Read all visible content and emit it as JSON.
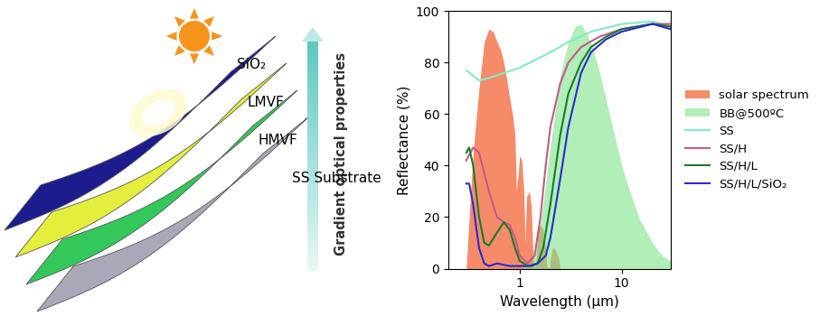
{
  "chart_data": {
    "type": "line",
    "x_label": "Wavelength (μm)",
    "y_label": "Reflectance (%)",
    "log": "x",
    "xlim": [
      0.2,
      30
    ],
    "xticks": [
      1,
      10
    ],
    "ylim": [
      0,
      100
    ],
    "yticks": [
      0,
      20,
      40,
      60,
      80,
      100
    ],
    "legend": "right",
    "series": [
      {
        "name": "solar spectrum",
        "type": "area",
        "color": "#f4774f",
        "x": [
          0.3,
          0.32,
          0.35,
          0.4,
          0.45,
          0.5,
          0.55,
          0.6,
          0.65,
          0.7,
          0.75,
          0.8,
          0.85,
          0.9,
          0.93,
          0.96,
          1.0,
          1.05,
          1.1,
          1.13,
          1.17,
          1.25,
          1.3,
          1.35,
          1.4,
          1.45,
          1.5,
          1.6,
          1.7,
          1.8,
          1.85,
          1.95,
          2.0,
          2.1,
          2.2,
          2.3,
          2.4,
          2.5
        ],
        "values": [
          0,
          20,
          45,
          70,
          88,
          93,
          92,
          88,
          85,
          80,
          73,
          66,
          60,
          52,
          30,
          35,
          44,
          42,
          30,
          10,
          28,
          30,
          24,
          6,
          0,
          3,
          15,
          17,
          15,
          8,
          1,
          0,
          4,
          8,
          8,
          6,
          4,
          0
        ]
      },
      {
        "name": "BB@500ºC",
        "type": "area",
        "color": "#7de38a",
        "x": [
          1.0,
          1.3,
          1.5,
          1.7,
          2.0,
          2.5,
          3.0,
          3.5,
          4.0,
          5.0,
          6.0,
          7.0,
          8.0,
          10.0,
          12.0,
          15.0,
          20.0,
          25.0,
          30.0
        ],
        "values": [
          0,
          2,
          10,
          25,
          48,
          75,
          88,
          94,
          95,
          88,
          77,
          66,
          56,
          40,
          30,
          19,
          10,
          5,
          3
        ]
      },
      {
        "name": "SS",
        "type": "line",
        "color": "#80ecc4",
        "x": [
          0.3,
          0.4,
          0.5,
          1.0,
          2.0,
          3.0,
          5.0,
          10.0,
          20.0,
          30.0
        ],
        "values": [
          77,
          73,
          74,
          78,
          84,
          88,
          92,
          95,
          96,
          94
        ]
      },
      {
        "name": "SS/H",
        "type": "line",
        "color": "#c45a8a",
        "x": [
          0.3,
          0.35,
          0.4,
          0.5,
          0.6,
          0.7,
          0.8,
          0.9,
          1.0,
          1.2,
          1.4,
          1.6,
          1.8,
          2.0,
          2.5,
          3.0,
          4.0,
          6.0,
          10.0,
          20.0,
          30.0
        ],
        "values": [
          42,
          47,
          45,
          30,
          20,
          18,
          17,
          12,
          5,
          2,
          5,
          20,
          40,
          55,
          72,
          80,
          86,
          90,
          93,
          95,
          95
        ]
      },
      {
        "name": "SS/H/L",
        "type": "line",
        "color": "#1a7a2a",
        "x": [
          0.3,
          0.32,
          0.35,
          0.4,
          0.45,
          0.5,
          0.6,
          0.7,
          0.8,
          0.9,
          1.0,
          1.2,
          1.5,
          1.7,
          2.0,
          2.5,
          3.0,
          4.0,
          5.0,
          7.0,
          10.0,
          20.0,
          30.0
        ],
        "values": [
          45,
          47,
          40,
          20,
          10,
          9,
          14,
          18,
          15,
          8,
          3,
          1,
          2,
          8,
          25,
          52,
          68,
          80,
          86,
          90,
          93,
          95,
          94
        ]
      },
      {
        "name": "SS/H/L/SiO₂",
        "type": "line",
        "color": "#2a2acf",
        "x": [
          0.3,
          0.32,
          0.35,
          0.4,
          0.45,
          0.5,
          0.6,
          0.8,
          1.0,
          1.3,
          1.5,
          1.8,
          2.0,
          2.5,
          3.0,
          4.0,
          5.0,
          7.0,
          10.0,
          20.0,
          30.0
        ],
        "values": [
          33,
          33,
          25,
          8,
          2,
          1,
          2,
          1,
          1,
          1,
          2,
          5,
          12,
          35,
          55,
          76,
          84,
          89,
          92,
          95,
          93
        ]
      }
    ]
  },
  "diagram": {
    "layers": [
      "SiO₂",
      "LMVF",
      "HMVF",
      "SS Substrate"
    ],
    "arrow_label": "Gradient optical properties"
  }
}
